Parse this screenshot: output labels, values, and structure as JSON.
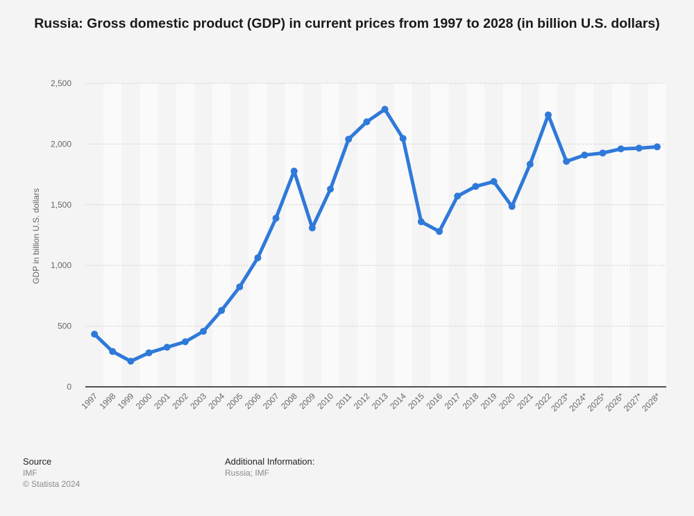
{
  "title": "Russia: Gross domestic product (GDP) in current prices from 1997 to 2028 (in billion U.S. dollars)",
  "footer": {
    "source_label": "Source",
    "source_value": "IMF",
    "copyright": "© Statista 2024",
    "additional_label": "Additional Information:",
    "additional_value": "Russia; IMF"
  },
  "colors": {
    "line": "#2f79d9",
    "background": "#f4f4f4",
    "band_light": "#fafafa",
    "grid": "#cccccc",
    "axis": "#1a1a1a"
  },
  "chart_data": {
    "type": "line",
    "title": "Russia: Gross domestic product (GDP) in current prices from 1997 to 2028 (in billion U.S. dollars)",
    "xlabel": "",
    "ylabel": "GDP in billion U.S. dollars",
    "ylim": [
      0,
      2500
    ],
    "yticks": [
      0,
      500,
      1000,
      1500,
      2000,
      2500
    ],
    "ytick_labels": [
      "0",
      "500",
      "1,000",
      "1,500",
      "2,000",
      "2,500"
    ],
    "grid": true,
    "legend": "none",
    "categories": [
      "1997",
      "1998",
      "1999",
      "2000",
      "2001",
      "2002",
      "2003",
      "2004",
      "2005",
      "2006",
      "2007",
      "2008",
      "2009",
      "2010",
      "2011",
      "2012",
      "2013",
      "2014",
      "2015",
      "2016",
      "2017",
      "2018",
      "2019",
      "2020",
      "2021",
      "2022",
      "2023*",
      "2024*",
      "2025*",
      "2026*",
      "2027*",
      "2028*"
    ],
    "series": [
      {
        "name": "GDP",
        "values": [
          434,
          291,
          211,
          280,
          326,
          371,
          457,
          629,
          823,
          1063,
          1389,
          1777,
          1309,
          1629,
          2040,
          2183,
          2286,
          2046,
          1360,
          1280,
          1571,
          1651,
          1691,
          1486,
          1834,
          2240,
          1857,
          1909,
          1926,
          1960,
          1966,
          1977
        ]
      }
    ]
  }
}
